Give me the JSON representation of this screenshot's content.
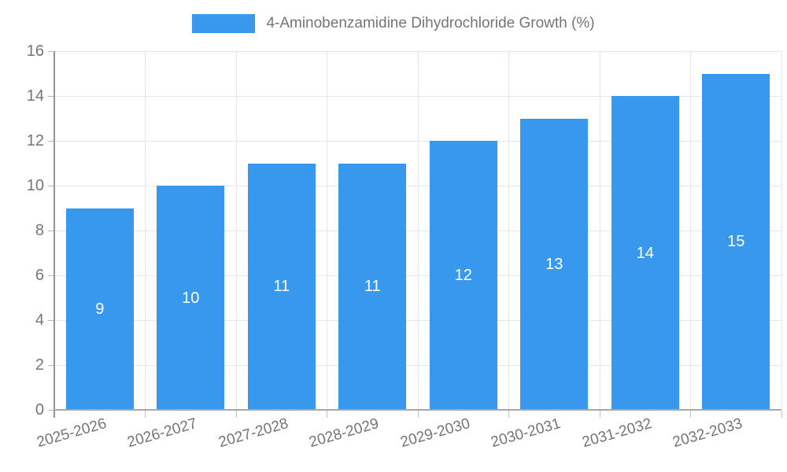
{
  "legend": {
    "label": "4-Aminobenzamidine Dihydrochloride Growth (%)",
    "position": "top"
  },
  "chart_data": {
    "type": "bar",
    "title": "",
    "xlabel": "",
    "ylabel": "",
    "categories": [
      "2025-2026",
      "2026-2027",
      "2027-2028",
      "2028-2029",
      "2029-2030",
      "2030-2031",
      "2031-2032",
      "2032-2033"
    ],
    "values": [
      9,
      10,
      11,
      11,
      12,
      13,
      14,
      15
    ],
    "value_labels_visible": true,
    "value_label_position": "inside-center",
    "ylim": [
      0,
      16
    ],
    "y_ticks": [
      0,
      2,
      4,
      6,
      8,
      10,
      12,
      14,
      16
    ],
    "grid": true,
    "legend_position": "top-center"
  },
  "colors": {
    "bar": "#3899ec",
    "grid": "#e6e6e6",
    "axis": "#999999",
    "tick_text": "#757575",
    "legend_text": "#757575",
    "value_label_text": "#ffffff",
    "background": "#ffffff"
  }
}
